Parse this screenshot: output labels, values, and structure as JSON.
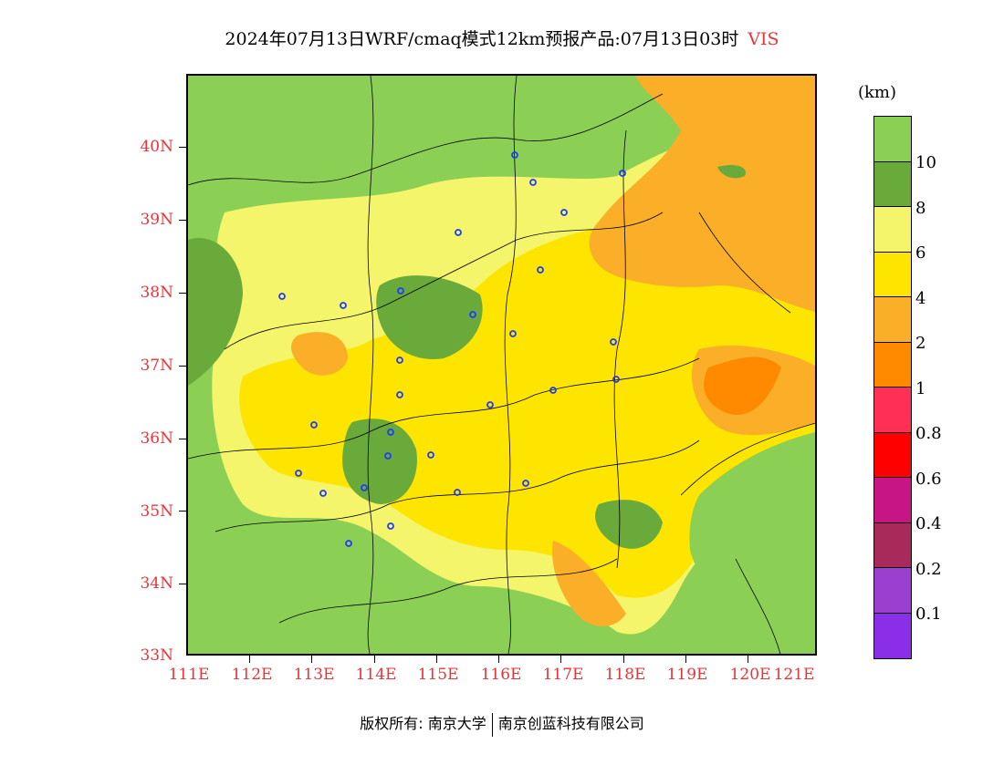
{
  "title": {
    "main": "2024年07月13日WRF/cmaq模式12km预报产品:07月13日03时",
    "variable": "VIS"
  },
  "map": {
    "lat_labels": [
      "40N",
      "39N",
      "38N",
      "37N",
      "36N",
      "35N",
      "34N",
      "33N"
    ],
    "lon_labels": [
      "111E",
      "112E",
      "113E",
      "114E",
      "115E",
      "116E",
      "117E",
      "118E",
      "119E",
      "120E",
      "121E"
    ]
  },
  "legend": {
    "unit": "(km)",
    "labels": [
      "10",
      "8",
      "6",
      "4",
      "2",
      "1",
      "0.8",
      "0.6",
      "0.4",
      "0.2",
      "0.1"
    ],
    "colors": [
      "#8ccf55",
      "#6aaa3a",
      "#f4f56a",
      "#fde500",
      "#fbae28",
      "#ff8a00",
      "#ff2f55",
      "#ff0000",
      "#c71585",
      "#a82a5a",
      "#9a3fd0",
      "#8b2ee8"
    ]
  },
  "footer": {
    "left": "版权所有: 南京大学",
    "right": "南京创蓝科技有限公司"
  }
}
